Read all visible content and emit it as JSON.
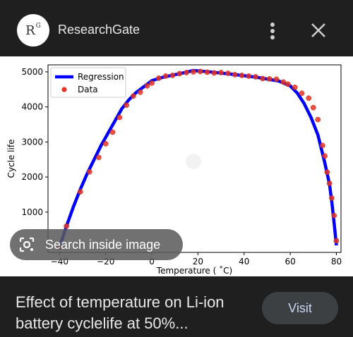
{
  "header": {
    "logo_text": "R",
    "logo_sup": "G",
    "site_name": "ResearchGate",
    "menu_icon": "more-vert-icon",
    "close_icon": "close-icon"
  },
  "chart_data": {
    "type": "line",
    "xlabel": "Temperature ( ˚C)",
    "ylabel": "Cycle life",
    "xlim": [
      -45,
      82
    ],
    "ylim": [
      -150,
      5200
    ],
    "xticks": [
      -40,
      -20,
      0,
      20,
      40,
      60,
      80
    ],
    "xtick_labels": [
      "−40",
      "−20",
      "0",
      "20",
      "40",
      "60",
      "80"
    ],
    "yticks": [
      1000,
      2000,
      3000,
      4000,
      5000
    ],
    "legend_position": "top-left",
    "series": [
      {
        "name": "Regression",
        "color": "#0000ff",
        "x": [
          -40,
          -37,
          -34,
          -31,
          -28,
          -25,
          -22,
          -19,
          -16,
          -13,
          -10,
          -7,
          -4,
          -1,
          0,
          5,
          10,
          15,
          18,
          25,
          35,
          45,
          55,
          60,
          63,
          66,
          69,
          72,
          75,
          77,
          78,
          79,
          80
        ],
        "y": [
          0,
          600,
          1150,
          1650,
          2100,
          2500,
          2900,
          3250,
          3600,
          3950,
          4200,
          4400,
          4550,
          4700,
          4750,
          4850,
          4920,
          4990,
          5040,
          5000,
          4930,
          4850,
          4740,
          4600,
          4400,
          4100,
          3700,
          3200,
          2400,
          1800,
          1300,
          700,
          50
        ]
      },
      {
        "name": "Data",
        "color": "#e63323",
        "x": [
          -40,
          -37,
          -31,
          -27,
          -23,
          -20,
          -17,
          -14,
          -11,
          -8,
          -5,
          -2,
          0,
          3,
          6,
          9,
          12,
          15,
          18,
          21,
          24,
          27,
          30,
          33,
          36,
          39,
          42,
          45,
          48,
          51,
          54,
          57,
          59,
          62,
          65,
          68,
          70,
          72,
          74,
          75,
          76,
          77,
          78,
          79,
          80
        ],
        "y": [
          0,
          600,
          1580,
          2150,
          2560,
          2950,
          3280,
          3700,
          4050,
          4310,
          4420,
          4600,
          4680,
          4820,
          4880,
          4900,
          4950,
          4980,
          5000,
          5010,
          4990,
          4970,
          4980,
          4960,
          4920,
          4900,
          4880,
          4860,
          4810,
          4800,
          4790,
          4710,
          4650,
          4560,
          4390,
          4250,
          3980,
          3640,
          2900,
          2600,
          2140,
          1820,
          1400,
          900,
          180
        ]
      }
    ]
  },
  "search_pill": {
    "label": "Search inside image",
    "icon": "lens-search-icon"
  },
  "caption": {
    "text": "Effect of temperature on Li-ion battery cyclelife at 50%..."
  },
  "visit_button": {
    "label": "Visit"
  }
}
